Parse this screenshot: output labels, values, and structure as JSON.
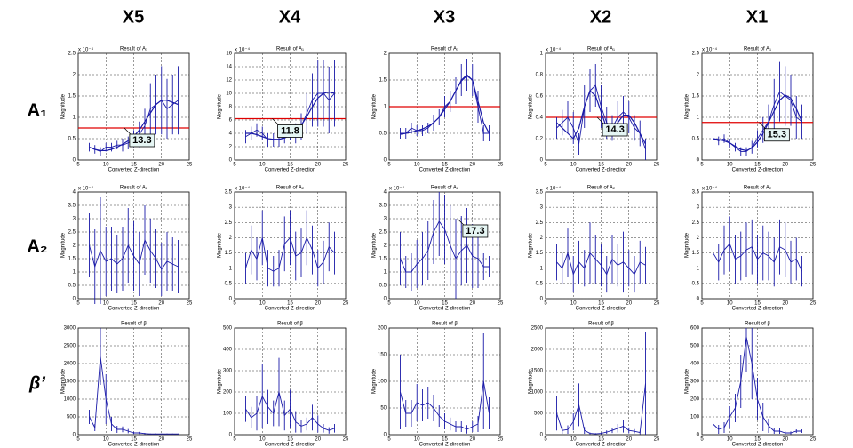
{
  "columns": [
    "X5",
    "X4",
    "X3",
    "X2",
    "X1"
  ],
  "rows": [
    "A₁",
    "A₂",
    "β’"
  ],
  "chart_data": [
    {
      "type": "errorbar",
      "title": "Result of A₁",
      "xlabel": "Converted Z-direction",
      "ylabel": "Magnitude",
      "exponent": "x 10⁻⁴",
      "color": "#1a1aa8",
      "grid": true,
      "x": [
        7,
        8,
        9,
        10,
        11,
        12,
        13,
        14,
        15,
        16,
        17,
        18,
        19,
        20,
        21,
        22,
        23
      ],
      "values": [
        0.3,
        0.25,
        0.2,
        0.3,
        0.3,
        0.35,
        0.35,
        0.4,
        0.5,
        0.6,
        0.8,
        1.2,
        1.3,
        1.4,
        1.2,
        1.3,
        1.4
      ],
      "errors": [
        0.1,
        0.1,
        0.1,
        0.1,
        0.1,
        0.1,
        0.15,
        0.15,
        0.2,
        0.3,
        0.4,
        0.6,
        0.7,
        0.8,
        0.7,
        0.7,
        0.8
      ],
      "fit": [
        0.3,
        0.25,
        0.22,
        0.22,
        0.25,
        0.3,
        0.37,
        0.45,
        0.55,
        0.7,
        0.9,
        1.1,
        1.3,
        1.4,
        1.4,
        1.35,
        1.3
      ],
      "threshold": 0.75,
      "threshold_color": "#e00000",
      "annotation": "13.3",
      "xlim": [
        5,
        25
      ],
      "xticks": [
        5,
        10,
        15,
        20,
        25
      ],
      "ylim": [
        0,
        2.5
      ],
      "yticks": [
        0,
        0.5,
        1,
        1.5,
        2,
        2.5
      ]
    },
    {
      "type": "errorbar",
      "title": "Result of A₁",
      "xlabel": "Converted Z-direction",
      "ylabel": "Magnitude",
      "exponent": "x 10⁻⁴",
      "color": "#1a1aa8",
      "grid": true,
      "x": [
        7,
        8,
        9,
        10,
        11,
        12,
        13,
        14,
        15,
        16,
        17,
        18,
        19,
        20,
        21,
        22,
        23
      ],
      "values": [
        3.5,
        4,
        4.5,
        4,
        3,
        3,
        3,
        3.5,
        4,
        4,
        5,
        7,
        9,
        10,
        10,
        9,
        10
      ],
      "errors": [
        1,
        1,
        1,
        1,
        1,
        1,
        1,
        1,
        1,
        1.5,
        2,
        3,
        4,
        5,
        5,
        5,
        5
      ],
      "fit": [
        4,
        4,
        3.8,
        3.5,
        3.2,
        3.1,
        3.1,
        3.3,
        3.7,
        4.3,
        5.2,
        6.5,
        8,
        9.3,
        10,
        10.2,
        10
      ],
      "threshold": 6.2,
      "threshold_color": "#e00000",
      "annotation": "11.8",
      "xlim": [
        5,
        25
      ],
      "xticks": [
        5,
        10,
        15,
        20,
        25
      ],
      "ylim": [
        0,
        16
      ],
      "yticks": [
        0,
        2,
        4,
        6,
        8,
        10,
        12,
        14,
        16
      ]
    },
    {
      "type": "errorbar",
      "title": "Result of A₁",
      "xlabel": "Converted Z-direction",
      "ylabel": "Magnitude",
      "color": "#1a1aa8",
      "grid": true,
      "x": [
        7,
        8,
        9,
        10,
        11,
        12,
        13,
        14,
        15,
        16,
        17,
        18,
        19,
        20,
        21,
        22,
        23
      ],
      "values": [
        0.5,
        0.5,
        0.6,
        0.55,
        0.55,
        0.6,
        0.7,
        0.8,
        1.0,
        1.1,
        1.3,
        1.5,
        1.6,
        1.5,
        1.0,
        0.5,
        0.5
      ],
      "errors": [
        0.1,
        0.1,
        0.1,
        0.1,
        0.1,
        0.1,
        0.15,
        0.15,
        0.2,
        0.2,
        0.25,
        0.3,
        0.3,
        0.3,
        0.3,
        0.15,
        0.15
      ],
      "fit": [
        0.48,
        0.5,
        0.52,
        0.55,
        0.58,
        0.63,
        0.7,
        0.8,
        0.95,
        1.1,
        1.3,
        1.48,
        1.58,
        1.5,
        1.1,
        0.7,
        0.5
      ],
      "threshold": 1,
      "threshold_color": "#e00000",
      "xlim": [
        5,
        25
      ],
      "xticks": [
        5,
        10,
        15,
        20,
        25
      ],
      "ylim": [
        0,
        2
      ],
      "yticks": [
        0,
        0.5,
        1,
        1.5,
        2
      ]
    },
    {
      "type": "errorbar",
      "title": "Result of A₁",
      "xlabel": "Converted Z-direction",
      "ylabel": "Magnitude",
      "exponent": "x 10⁻⁴",
      "color": "#1a1aa8",
      "grid": true,
      "x": [
        7,
        8,
        9,
        10,
        11,
        12,
        13,
        14,
        15,
        16,
        17,
        18,
        19,
        20,
        21,
        22,
        23
      ],
      "values": [
        0.3,
        0.35,
        0.4,
        0.3,
        0.15,
        0.5,
        0.65,
        0.7,
        0.5,
        0.35,
        0.3,
        0.4,
        0.45,
        0.4,
        0.3,
        0.25,
        0.1
      ],
      "errors": [
        0.1,
        0.12,
        0.15,
        0.15,
        0.1,
        0.2,
        0.2,
        0.2,
        0.2,
        0.15,
        0.12,
        0.15,
        0.15,
        0.15,
        0.12,
        0.12,
        0.1
      ],
      "fit": [
        0.35,
        0.3,
        0.25,
        0.2,
        0.3,
        0.5,
        0.65,
        0.6,
        0.45,
        0.3,
        0.28,
        0.35,
        0.42,
        0.42,
        0.35,
        0.25,
        0.15
      ],
      "threshold": 0.4,
      "threshold_color": "#e00000",
      "annotation": "14.3",
      "xlim": [
        5,
        25
      ],
      "xticks": [
        5,
        10,
        15,
        20,
        25
      ],
      "ylim": [
        0,
        1
      ],
      "yticks": [
        0,
        0.2,
        0.4,
        0.6,
        0.8,
        1
      ]
    },
    {
      "type": "errorbar",
      "title": "Result of A₁",
      "xlabel": "Converted Z-direction",
      "ylabel": "Magnitude",
      "exponent": "x 10⁻⁴",
      "color": "#1a1aa8",
      "grid": true,
      "x": [
        7,
        8,
        9,
        10,
        11,
        12,
        13,
        14,
        15,
        16,
        17,
        18,
        19,
        20,
        21,
        22,
        23
      ],
      "values": [
        0.5,
        0.45,
        0.5,
        0.4,
        0.3,
        0.2,
        0.2,
        0.3,
        0.5,
        0.7,
        0.9,
        1.3,
        1.6,
        1.5,
        1.4,
        1.0,
        0.9
      ],
      "errors": [
        0.1,
        0.1,
        0.1,
        0.1,
        0.1,
        0.1,
        0.1,
        0.15,
        0.2,
        0.3,
        0.4,
        0.6,
        0.7,
        0.7,
        0.6,
        0.5,
        0.4
      ],
      "fit": [
        0.5,
        0.48,
        0.45,
        0.4,
        0.32,
        0.25,
        0.22,
        0.28,
        0.42,
        0.62,
        0.88,
        1.15,
        1.4,
        1.52,
        1.45,
        1.2,
        0.9
      ],
      "threshold": 0.88,
      "threshold_color": "#e00000",
      "annotation": "15.3",
      "xlim": [
        5,
        25
      ],
      "xticks": [
        5,
        10,
        15,
        20,
        25
      ],
      "ylim": [
        0,
        2.5
      ],
      "yticks": [
        0,
        0.5,
        1,
        1.5,
        2,
        2.5
      ]
    },
    {
      "type": "errorbar",
      "title": "Result of A₂",
      "xlabel": "Converted Z-direction",
      "ylabel": "Magnitude",
      "exponent": "x 10⁻⁴",
      "color": "#1a1aa8",
      "grid": true,
      "x": [
        7,
        8,
        9,
        10,
        11,
        12,
        13,
        14,
        15,
        16,
        17,
        18,
        19,
        20,
        21,
        22,
        23
      ],
      "values": [
        2,
        1.2,
        1.8,
        1.4,
        1.5,
        1.3,
        1.5,
        2,
        1.6,
        1.3,
        2.2,
        1.8,
        1.5,
        1.1,
        1.4,
        1.3,
        1.2
      ],
      "errors": [
        1.2,
        1.4,
        2,
        1.3,
        1.2,
        1.1,
        1.2,
        1.4,
        1.3,
        1.2,
        1.3,
        1.2,
        1.1,
        1,
        1.1,
        1,
        1
      ],
      "xlim": [
        5,
        25
      ],
      "xticks": [
        5,
        10,
        15,
        20,
        25
      ],
      "ylim": [
        0,
        4
      ],
      "yticks": [
        0,
        0.5,
        1,
        1.5,
        2,
        2.5,
        3,
        3.5,
        4
      ]
    },
    {
      "type": "errorbar",
      "title": "Result of A₂",
      "xlabel": "Converted Z-direction",
      "ylabel": "Magnitude",
      "exponent": "x 10⁻⁴",
      "color": "#1a1aa8",
      "grid": true,
      "x": [
        7,
        8,
        9,
        10,
        11,
        12,
        13,
        14,
        15,
        16,
        17,
        18,
        19,
        20,
        21,
        22,
        23
      ],
      "values": [
        1,
        1.6,
        1.3,
        2,
        1,
        0.9,
        1,
        1.8,
        2,
        1.4,
        1.5,
        2,
        1.6,
        1,
        1.2,
        1.7,
        1.5
      ],
      "errors": [
        0.5,
        0.8,
        0.7,
        0.9,
        0.6,
        0.5,
        0.6,
        0.9,
        0.9,
        0.8,
        0.8,
        0.9,
        0.8,
        0.6,
        0.7,
        0.8,
        0.7
      ],
      "xlim": [
        5,
        25
      ],
      "xticks": [
        5,
        10,
        15,
        20,
        25
      ],
      "ylim": [
        0,
        3.5
      ],
      "yticks": [
        0,
        0.5,
        1,
        1.5,
        2,
        2.5,
        3,
        3.5
      ]
    },
    {
      "type": "errorbar",
      "title": "Result of A₂",
      "xlabel": "Converted Z-direction",
      "ylabel": "Magnitude",
      "exponent": "x 10⁻⁴",
      "color": "#1a1aa8",
      "grid": true,
      "x": [
        7,
        8,
        9,
        10,
        11,
        12,
        13,
        14,
        15,
        16,
        17,
        18,
        19,
        20,
        21,
        22,
        23
      ],
      "values": [
        1.5,
        1,
        1,
        1.3,
        1.5,
        1.8,
        2.5,
        2.9,
        2.6,
        2,
        1.5,
        1.8,
        2,
        1.6,
        1.5,
        1.2,
        1.2
      ],
      "errors": [
        1,
        0.6,
        0.7,
        0.9,
        1,
        1.1,
        1.2,
        1.3,
        1.3,
        1.5,
        1.5,
        1.3,
        1.4,
        1.2,
        1.1,
        0.5,
        0.4
      ],
      "annotation": "17.3",
      "xlim": [
        5,
        25
      ],
      "xticks": [
        5,
        10,
        15,
        20,
        25
      ],
      "ylim": [
        0,
        4
      ],
      "yticks": [
        0,
        0.5,
        1,
        1.5,
        2,
        2.5,
        3,
        3.5,
        4
      ]
    },
    {
      "type": "errorbar",
      "title": "Result of A₂",
      "xlabel": "Converted Z-direction",
      "ylabel": "Magnitude",
      "exponent": "x 10⁻⁴",
      "color": "#1a1aa8",
      "grid": true,
      "x": [
        7,
        8,
        9,
        10,
        11,
        12,
        13,
        14,
        15,
        16,
        17,
        18,
        19,
        20,
        21,
        22,
        23
      ],
      "values": [
        1.2,
        1,
        1.5,
        0.8,
        1.2,
        1,
        1.5,
        1.3,
        1.1,
        0.8,
        1.3,
        1.1,
        1.2,
        1,
        0.8,
        1.2,
        1.1
      ],
      "errors": [
        0.6,
        0.5,
        0.8,
        0.6,
        0.7,
        0.6,
        1,
        0.8,
        0.7,
        0.6,
        0.8,
        0.7,
        1,
        0.6,
        0.6,
        0.7,
        0.6
      ],
      "xlim": [
        5,
        25
      ],
      "xticks": [
        5,
        10,
        15,
        20,
        25
      ],
      "ylim": [
        0,
        3.5
      ],
      "yticks": [
        0,
        0.5,
        1,
        1.5,
        2,
        2.5,
        3,
        3.5
      ]
    },
    {
      "type": "errorbar",
      "title": "Result of A₂",
      "xlabel": "Converted Z-direction",
      "ylabel": "Magnitude",
      "exponent": "x 10⁻⁴",
      "color": "#1a1aa8",
      "grid": true,
      "x": [
        7,
        8,
        9,
        10,
        11,
        12,
        13,
        14,
        15,
        16,
        17,
        18,
        19,
        20,
        21,
        22,
        23
      ],
      "values": [
        1.5,
        1.2,
        1.6,
        1.8,
        1.3,
        1.4,
        1.6,
        1.7,
        1.3,
        1.5,
        1.4,
        1.2,
        1.7,
        1.6,
        1.2,
        1.3,
        0.9
      ],
      "errors": [
        0.6,
        0.6,
        0.8,
        0.9,
        0.8,
        0.8,
        0.9,
        0.9,
        0.8,
        0.9,
        0.8,
        0.8,
        0.9,
        0.9,
        0.7,
        0.7,
        0.5
      ],
      "xlim": [
        5,
        25
      ],
      "xticks": [
        5,
        10,
        15,
        20,
        25
      ],
      "ylim": [
        0,
        3.5
      ],
      "yticks": [
        0,
        0.5,
        1,
        1.5,
        2,
        2.5,
        3,
        3.5
      ]
    },
    {
      "type": "errorbar",
      "title": "Result of β",
      "xlabel": "Converted Z-direction",
      "ylabel": "Magnitude",
      "color": "#1a1aa8",
      "grid": true,
      "x": [
        7,
        8,
        9,
        10,
        11,
        12,
        13,
        14,
        15,
        16,
        17,
        18,
        19,
        20,
        21,
        22,
        23
      ],
      "values": [
        500,
        200,
        2200,
        1000,
        300,
        150,
        150,
        100,
        50,
        50,
        30,
        20,
        20,
        20,
        20,
        20,
        20
      ],
      "errors": [
        200,
        100,
        800,
        700,
        200,
        100,
        80,
        60,
        30,
        30,
        20,
        10,
        10,
        10,
        10,
        10,
        10
      ],
      "xlim": [
        5,
        25
      ],
      "xticks": [
        5,
        10,
        15,
        20,
        25
      ],
      "ylim": [
        0,
        3000
      ],
      "yticks": [
        0,
        500,
        1000,
        1500,
        2000,
        2500,
        3000
      ]
    },
    {
      "type": "errorbar",
      "title": "Result of β",
      "xlabel": "Converted Z-direction",
      "ylabel": "Magnitude",
      "color": "#1a1aa8",
      "grid": true,
      "x": [
        7,
        8,
        9,
        10,
        11,
        12,
        13,
        14,
        15,
        16,
        17,
        18,
        19,
        20,
        21,
        22,
        23
      ],
      "values": [
        120,
        80,
        100,
        180,
        130,
        100,
        200,
        90,
        120,
        60,
        40,
        50,
        80,
        50,
        30,
        20,
        30
      ],
      "errors": [
        60,
        50,
        80,
        150,
        80,
        60,
        160,
        70,
        90,
        50,
        30,
        30,
        60,
        40,
        20,
        15,
        20
      ],
      "xlim": [
        5,
        25
      ],
      "xticks": [
        5,
        10,
        15,
        20,
        25
      ],
      "ylim": [
        0,
        500
      ],
      "yticks": [
        0,
        100,
        200,
        300,
        400,
        500
      ]
    },
    {
      "type": "errorbar",
      "title": "Result of β",
      "xlabel": "Converted Z-direction",
      "ylabel": "Magnitude",
      "color": "#1a1aa8",
      "grid": true,
      "x": [
        7,
        8,
        9,
        10,
        11,
        12,
        13,
        14,
        15,
        16,
        17,
        18,
        19,
        20,
        21,
        22,
        23
      ],
      "values": [
        80,
        40,
        40,
        60,
        55,
        60,
        50,
        35,
        25,
        20,
        15,
        15,
        10,
        15,
        20,
        100,
        40
      ],
      "errors": [
        70,
        25,
        25,
        35,
        30,
        30,
        25,
        20,
        15,
        12,
        10,
        10,
        8,
        10,
        15,
        90,
        30
      ],
      "xlim": [
        5,
        25
      ],
      "xticks": [
        5,
        10,
        15,
        20,
        25
      ],
      "ylim": [
        0,
        200
      ],
      "yticks": [
        0,
        50,
        100,
        150,
        200
      ]
    },
    {
      "type": "errorbar",
      "title": "Result of β",
      "xlabel": "Converted Z-direction",
      "ylabel": "Magnitude",
      "color": "#1a1aa8",
      "grid": true,
      "x": [
        7,
        8,
        9,
        10,
        11,
        12,
        13,
        14,
        15,
        16,
        17,
        18,
        19,
        20,
        21,
        22,
        23
      ],
      "values": [
        500,
        100,
        120,
        300,
        700,
        100,
        30,
        20,
        30,
        60,
        100,
        150,
        200,
        100,
        80,
        50,
        1200
      ],
      "errors": [
        400,
        80,
        100,
        200,
        500,
        80,
        20,
        15,
        20,
        40,
        60,
        100,
        150,
        70,
        50,
        40,
        1200
      ],
      "xlim": [
        5,
        25
      ],
      "xticks": [
        5,
        10,
        15,
        20,
        25
      ],
      "ylim": [
        0,
        2500
      ],
      "yticks": [
        0,
        500,
        1000,
        1500,
        2000,
        2500
      ]
    },
    {
      "type": "errorbar",
      "title": "Result of β",
      "xlabel": "Converted Z-direction",
      "ylabel": "Magnitude",
      "color": "#1a1aa8",
      "grid": true,
      "x": [
        7,
        8,
        9,
        10,
        11,
        12,
        13,
        14,
        15,
        16,
        17,
        18,
        19,
        20,
        21,
        22,
        23
      ],
      "values": [
        60,
        30,
        40,
        100,
        150,
        300,
        550,
        400,
        200,
        100,
        50,
        20,
        20,
        10,
        10,
        20,
        20
      ],
      "errors": [
        50,
        25,
        30,
        60,
        80,
        150,
        200,
        200,
        120,
        80,
        40,
        15,
        15,
        8,
        8,
        10,
        10
      ],
      "xlim": [
        5,
        25
      ],
      "xticks": [
        5,
        10,
        15,
        20,
        25
      ],
      "ylim": [
        0,
        600
      ],
      "yticks": [
        0,
        100,
        200,
        300,
        400,
        500,
        600
      ]
    }
  ]
}
